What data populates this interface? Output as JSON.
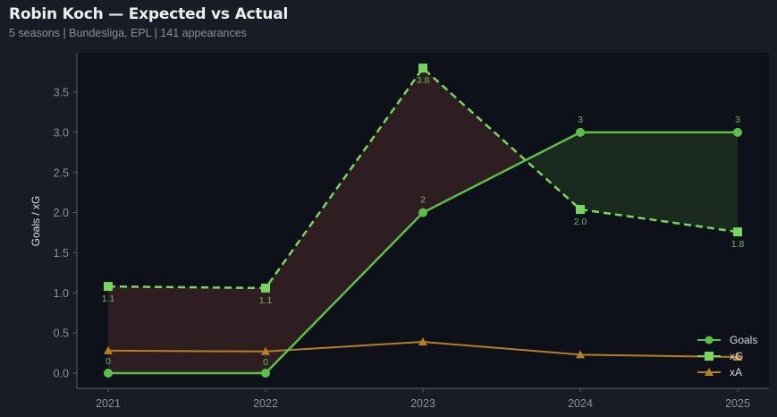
{
  "header": {
    "title": "Robin Koch — Expected vs Actual",
    "subtitle": "5 seasons | Bundesliga, EPL | 141 appearances"
  },
  "colors": {
    "page_bg": "#181c24",
    "plot_bg": "#0e111a",
    "goals": "#5cbf4a",
    "xg": "#78d65e",
    "xa": "#b58022",
    "underperform_fill": "#2e1d21",
    "overperform_fill": "#1a2a1e",
    "axis": "#5a5f6a",
    "tick_text": "#8b909a"
  },
  "chart_data": {
    "type": "line",
    "title": "Robin Koch — Expected vs Actual",
    "subtitle": "5 seasons | Bundesliga, EPL | 141 appearances",
    "xlabel": "",
    "ylabel": "Goals / xG",
    "categories": [
      "2021",
      "2022",
      "2023",
      "2024",
      "2025"
    ],
    "ylim": [
      -0.12,
      3.9
    ],
    "yticks": [
      0.0,
      0.5,
      1.0,
      1.5,
      2.0,
      2.5,
      3.0,
      3.5
    ],
    "ytick_labels": [
      "0.0",
      "0.5",
      "1.0",
      "1.5",
      "2.0",
      "2.5",
      "3.0",
      "3.5"
    ],
    "grid": false,
    "legend_position": "lower right",
    "series": [
      {
        "name": "Goals",
        "style": "solid",
        "marker": "circle",
        "values": [
          0,
          0,
          2,
          3,
          3
        ],
        "labels": [
          "0",
          "0",
          "2",
          "3",
          "3"
        ]
      },
      {
        "name": "xG",
        "style": "dashed",
        "marker": "square",
        "values": [
          1.08,
          1.06,
          3.8,
          2.04,
          1.76
        ],
        "labels": [
          "1.1",
          "1.1",
          "3.8",
          "2.0",
          "1.8"
        ]
      },
      {
        "name": "xA",
        "style": "solid",
        "marker": "triangle",
        "values": [
          0.28,
          0.27,
          0.39,
          0.23,
          0.2
        ]
      }
    ],
    "fill_between": {
      "series": [
        "Goals",
        "xG"
      ],
      "underperform_color": "#2e1d21",
      "overperform_color": "#1a2a1e"
    }
  },
  "legend": {
    "items": [
      {
        "label": "Goals"
      },
      {
        "label": "xG"
      },
      {
        "label": "xA"
      }
    ]
  }
}
